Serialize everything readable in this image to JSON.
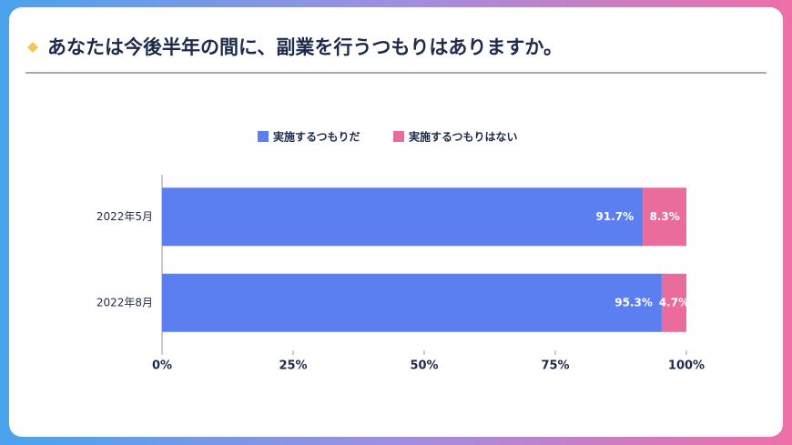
{
  "chart_data": {
    "type": "bar",
    "orientation": "horizontal",
    "stacked": true,
    "title": "あなたは今後半年の間に、副業を行うつもりはありますか。",
    "categories": [
      "2022年5月",
      "2022年8月"
    ],
    "series": [
      {
        "name": "実施するつもりだ",
        "color": "#5b7ff0",
        "values": [
          91.7,
          95.3
        ],
        "value_labels": [
          "91.7%",
          "95.3%"
        ]
      },
      {
        "name": "実施するつもりはない",
        "color": "#e96c9c",
        "values": [
          8.3,
          4.7
        ],
        "value_labels": [
          "8.3%",
          "4.7%"
        ]
      }
    ],
    "xlim": [
      0,
      100
    ],
    "xticks": [
      {
        "value": 0,
        "label": "0%"
      },
      {
        "value": 25,
        "label": "25%"
      },
      {
        "value": 50,
        "label": "50%"
      },
      {
        "value": 75,
        "label": "75%"
      },
      {
        "value": 100,
        "label": "100%"
      }
    ],
    "legend": "top"
  }
}
